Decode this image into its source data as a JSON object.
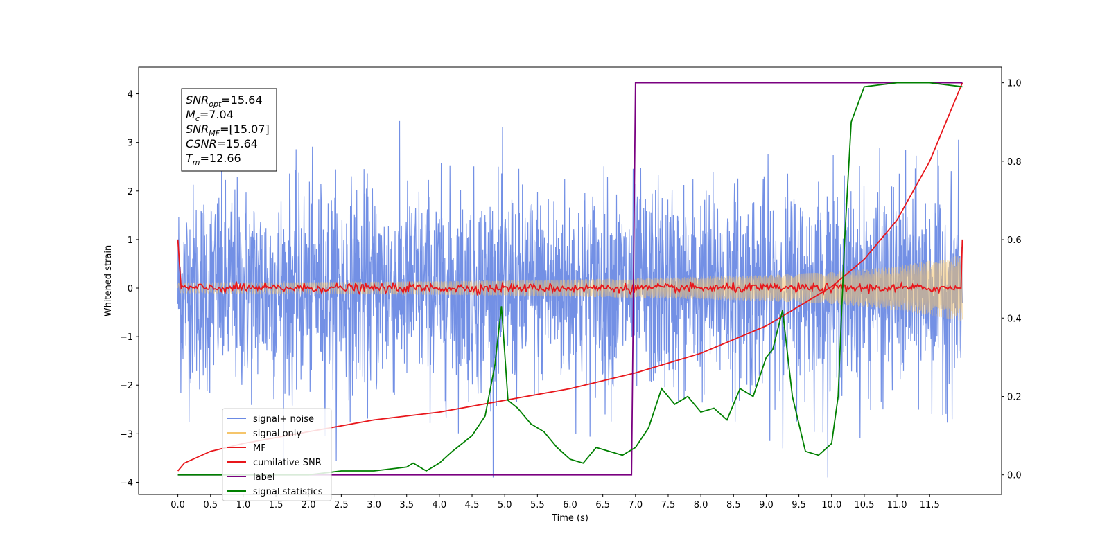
{
  "chart_data": {
    "type": "line",
    "xlabel": "Time (s)",
    "ylabel": "Whitened strain",
    "xlim": [
      -0.6,
      12.6
    ],
    "ylim_left": [
      -4.25,
      4.55
    ],
    "ylim_right": [
      -0.05,
      1.04
    ],
    "x_ticks": [
      "0.0",
      "0.5",
      "1.0",
      "1.5",
      "2.0",
      "2.5",
      "3.0",
      "3.5",
      "4.0",
      "4.5",
      "5.0",
      "5.5",
      "6.0",
      "6.5",
      "7.0",
      "7.5",
      "8.0",
      "8.5",
      "9.0",
      "9.5",
      "10.0",
      "10.5",
      "11.0",
      "11.5"
    ],
    "y_ticks_left": [
      "−4",
      "−3",
      "−2",
      "−1",
      "0",
      "1",
      "2",
      "3",
      "4"
    ],
    "y_ticks_right": [
      "0.0",
      "0.2",
      "0.4",
      "0.6",
      "0.8",
      "1.0"
    ],
    "series": [
      {
        "name": "signal+ noise",
        "color": "#6b8ae4",
        "axis": "left",
        "description_values": {
          "x_range": [
            0,
            12
          ],
          "approx_amplitude": 3.5
        }
      },
      {
        "name": "signal only",
        "color": "#f5c56b",
        "axis": "left",
        "envelope": {
          "x": [
            0,
            4,
            7,
            9,
            10,
            11,
            12
          ],
          "amp": [
            0.1,
            0.14,
            0.2,
            0.27,
            0.33,
            0.45,
            0.68
          ]
        }
      },
      {
        "name": "MF",
        "color": "#e8161b",
        "axis": "left",
        "note": "near-zero noisy trace with endpoints at 1.0"
      },
      {
        "name": "cumilative SNR",
        "color": "#e8161b",
        "axis": "right",
        "x": [
          0.0,
          0.1,
          0.5,
          1.0,
          2.0,
          3.0,
          4.0,
          5.0,
          6.0,
          7.0,
          8.0,
          9.0,
          10.0,
          10.5,
          11.0,
          11.5,
          12.0
        ],
        "y": [
          0.01,
          0.03,
          0.06,
          0.08,
          0.11,
          0.14,
          0.16,
          0.19,
          0.22,
          0.26,
          0.31,
          0.38,
          0.48,
          0.55,
          0.65,
          0.8,
          1.0
        ]
      },
      {
        "name": "label",
        "color": "#7a0080",
        "axis": "right",
        "x": [
          0.0,
          6.94,
          7.0,
          12.0
        ],
        "y": [
          0.0,
          0.0,
          1.0,
          1.0
        ]
      },
      {
        "name": "signal statistics",
        "color": "#008000",
        "axis": "right",
        "x": [
          0.0,
          0.5,
          1.0,
          1.5,
          2.0,
          2.5,
          3.0,
          3.5,
          3.6,
          3.8,
          4.0,
          4.2,
          4.5,
          4.7,
          4.85,
          4.95,
          5.05,
          5.2,
          5.4,
          5.6,
          5.8,
          6.0,
          6.2,
          6.4,
          6.6,
          6.8,
          7.0,
          7.2,
          7.4,
          7.6,
          7.8,
          8.0,
          8.2,
          8.4,
          8.6,
          8.8,
          9.0,
          9.1,
          9.25,
          9.4,
          9.6,
          9.8,
          10.0,
          10.1,
          10.2,
          10.3,
          10.5,
          11.0,
          11.5,
          12.0
        ],
        "y": [
          0.0,
          0.0,
          0.0,
          0.0,
          0.0,
          0.01,
          0.01,
          0.02,
          0.03,
          0.01,
          0.03,
          0.06,
          0.1,
          0.15,
          0.28,
          0.43,
          0.19,
          0.17,
          0.13,
          0.11,
          0.07,
          0.04,
          0.03,
          0.07,
          0.06,
          0.05,
          0.07,
          0.12,
          0.22,
          0.18,
          0.2,
          0.16,
          0.17,
          0.14,
          0.22,
          0.2,
          0.3,
          0.32,
          0.42,
          0.2,
          0.06,
          0.05,
          0.08,
          0.2,
          0.6,
          0.9,
          0.99,
          1.0,
          1.0,
          0.99
        ]
      }
    ],
    "legend": {
      "placement": "lower-left",
      "entries": [
        {
          "label": "signal+ noise",
          "color": "#6b8ae4"
        },
        {
          "label": "signal only",
          "color": "#f5c56b"
        },
        {
          "label": "MF",
          "color": "#e8161b"
        },
        {
          "label": "cumilative SNR",
          "color": "#e8161b"
        },
        {
          "label": "label",
          "color": "#7a0080"
        },
        {
          "label": "signal statistics",
          "color": "#008000"
        }
      ]
    },
    "annotation": {
      "placement": "upper-left",
      "lines": [
        {
          "sym": "SNR",
          "sub": "opt",
          "val": "=15.64"
        },
        {
          "sym": "M",
          "sub": "c",
          "val": "=7.04"
        },
        {
          "sym": "SNR",
          "sub": "MF",
          "val": "=[15.07]"
        },
        {
          "sym": "CSNR",
          "sub": "",
          "val": "=15.64"
        },
        {
          "sym": "T",
          "sub": "m",
          "val": "=12.66"
        }
      ]
    }
  }
}
